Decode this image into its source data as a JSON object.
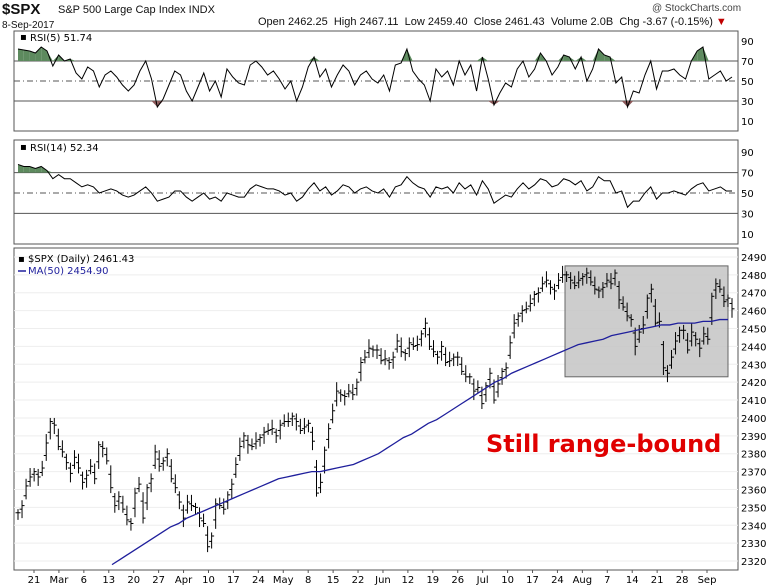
{
  "header": {
    "symbol": "$SPX",
    "name": "S&P 500 Large Cap Index INDX",
    "date": "8-Sep-2017",
    "open": "Open 2462.25",
    "high": "High 2467.11",
    "low": "Low 2459.40",
    "close": "Close 2461.43",
    "volume": "Volume 2.0B",
    "change": "Chg -3.67 (-0.15%)",
    "change_marker": "▼",
    "credit": "@ StockCharts.com"
  },
  "colors": {
    "overbought_fill": "#5d8a5e",
    "oversold_fill": "#8c5a5a",
    "ma_line": "#1f1f9c",
    "range_box": "#c4c4c4",
    "annotation": "#e00000"
  },
  "chart_data": [
    {
      "type": "line",
      "title": "RSI(5) 51.74",
      "ylim": [
        0,
        100
      ],
      "y_ticks": [
        "90",
        "70",
        "50",
        "30",
        "10"
      ],
      "ref_lines": [
        70,
        50,
        30
      ],
      "values": [
        82,
        81,
        80,
        78,
        84,
        80,
        65,
        76,
        70,
        72,
        58,
        52,
        64,
        60,
        44,
        56,
        60,
        54,
        46,
        40,
        46,
        60,
        70,
        52,
        24,
        32,
        46,
        60,
        56,
        40,
        30,
        44,
        58,
        40,
        50,
        34,
        62,
        54,
        48,
        46,
        66,
        70,
        64,
        56,
        60,
        52,
        42,
        50,
        30,
        44,
        64,
        74,
        54,
        62,
        44,
        56,
        66,
        60,
        46,
        56,
        60,
        52,
        48,
        56,
        40,
        66,
        68,
        82,
        60,
        52,
        46,
        30,
        62,
        54,
        60,
        46,
        70,
        56,
        66,
        40,
        74,
        52,
        26,
        38,
        48,
        44,
        62,
        70,
        54,
        62,
        78,
        70,
        56,
        64,
        76,
        74,
        62,
        74,
        50,
        62,
        82,
        76,
        74,
        48,
        54,
        24,
        40,
        38,
        56,
        70,
        42,
        60,
        60,
        62,
        56,
        52,
        70,
        80,
        84,
        52,
        56,
        60,
        50,
        54
      ]
    },
    {
      "type": "line",
      "title": "RSI(14) 52.34",
      "ylim": [
        0,
        100
      ],
      "y_ticks": [
        "90",
        "70",
        "50",
        "30",
        "10"
      ],
      "ref_lines": [
        70,
        50,
        30
      ],
      "values": [
        78,
        76,
        76,
        74,
        76,
        72,
        64,
        68,
        64,
        64,
        60,
        56,
        58,
        56,
        50,
        52,
        54,
        52,
        48,
        46,
        48,
        52,
        56,
        50,
        42,
        44,
        46,
        52,
        52,
        46,
        42,
        46,
        50,
        44,
        46,
        42,
        50,
        48,
        46,
        46,
        54,
        58,
        56,
        54,
        54,
        52,
        48,
        50,
        42,
        46,
        54,
        60,
        52,
        56,
        48,
        52,
        58,
        56,
        50,
        54,
        56,
        52,
        50,
        54,
        46,
        56,
        58,
        66,
        60,
        56,
        54,
        46,
        56,
        54,
        56,
        50,
        60,
        54,
        58,
        48,
        62,
        54,
        40,
        44,
        48,
        46,
        54,
        60,
        54,
        58,
        64,
        62,
        56,
        58,
        64,
        62,
        58,
        62,
        52,
        56,
        66,
        62,
        62,
        50,
        52,
        36,
        42,
        42,
        50,
        56,
        44,
        50,
        50,
        52,
        50,
        48,
        54,
        58,
        60,
        52,
        54,
        56,
        52,
        52
      ]
    },
    {
      "type": "bar",
      "title": "$SPX (Daily) 2461.43",
      "series": [
        {
          "name": "$SPX (Daily) 2461.43",
          "style": "ohlc bars"
        },
        {
          "name": "MA(50) 2454.90",
          "style": "line"
        }
      ],
      "ylim": [
        2315,
        2495
      ],
      "y_ticks": [
        "2490",
        "2480",
        "2470",
        "2460",
        "2450",
        "2440",
        "2430",
        "2420",
        "2410",
        "2400",
        "2390",
        "2380",
        "2370",
        "2360",
        "2350",
        "2340",
        "2330",
        "2320"
      ],
      "x_ticks": [
        "21",
        "Mar",
        "6",
        "13",
        "20",
        "27",
        "Apr",
        "10",
        "17",
        "24",
        "May",
        "8",
        "15",
        "22",
        "Jun",
        "12",
        "19",
        "26",
        "Jul",
        "10",
        "17",
        "24",
        "Aug",
        "7",
        "14",
        "21",
        "28",
        "Sep"
      ],
      "close": [
        2347,
        2351,
        2362,
        2367,
        2370,
        2367,
        2372,
        2386,
        2398,
        2396,
        2384,
        2381,
        2375,
        2369,
        2378,
        2372,
        2364,
        2368,
        2373,
        2366,
        2385,
        2383,
        2376,
        2361,
        2351,
        2356,
        2349,
        2343,
        2341,
        2358,
        2363,
        2344,
        2361,
        2366,
        2381,
        2373,
        2376,
        2380,
        2366,
        2361,
        2353,
        2344,
        2353,
        2351,
        2350,
        2344,
        2341,
        2328,
        2334,
        2352,
        2351,
        2349,
        2357,
        2363,
        2374,
        2384,
        2390,
        2385,
        2384,
        2387,
        2389,
        2392,
        2393,
        2394,
        2390,
        2396,
        2398,
        2398,
        2401,
        2398,
        2393,
        2395,
        2397,
        2387,
        2358,
        2364,
        2382,
        2394,
        2404,
        2415,
        2413,
        2412,
        2415,
        2413,
        2420,
        2431,
        2434,
        2439,
        2438,
        2438,
        2432,
        2433,
        2431,
        2434,
        2443,
        2437,
        2436,
        2442,
        2440,
        2441,
        2447,
        2453,
        2440,
        2437,
        2434,
        2440,
        2431,
        2432,
        2434,
        2434,
        2426,
        2423,
        2423,
        2415,
        2417,
        2408,
        2418,
        2425,
        2410,
        2419,
        2426,
        2428,
        2442,
        2453,
        2457,
        2460,
        2461,
        2464,
        2469,
        2470,
        2475,
        2477,
        2473,
        2471,
        2477,
        2480,
        2480,
        2477,
        2474,
        2477,
        2479,
        2481,
        2476,
        2472,
        2471,
        2473,
        2477,
        2475,
        2481,
        2466,
        2462,
        2457,
        2455,
        2440,
        2448,
        2452,
        2467,
        2472,
        2453,
        2454,
        2428,
        2425,
        2434,
        2443,
        2449,
        2449,
        2438,
        2448,
        2444,
        2439,
        2447,
        2444,
        2468,
        2475,
        2472,
        2465,
        2467,
        2461
      ],
      "ma50": [
        2318,
        2321,
        2324,
        2327,
        2330,
        2333,
        2336,
        2339,
        2341,
        2344,
        2346,
        2348,
        2350,
        2352,
        2354,
        2356,
        2358,
        2360,
        2362,
        2364,
        2366,
        2367,
        2368,
        2369,
        2370,
        2370,
        2371,
        2372,
        2373,
        2374,
        2376,
        2378,
        2380,
        2383,
        2386,
        2389,
        2391,
        2394,
        2397,
        2399,
        2402,
        2405,
        2408,
        2411,
        2414,
        2417,
        2420,
        2422,
        2425,
        2427,
        2429,
        2431,
        2433,
        2435,
        2437,
        2439,
        2441,
        2442,
        2443,
        2444,
        2446,
        2447,
        2448,
        2449,
        2450,
        2451,
        2452,
        2452,
        2453,
        2453,
        2453,
        2454,
        2454,
        2455,
        2455
      ],
      "annotations": [
        {
          "text": "Still range-bound",
          "color": "#e00000"
        },
        {
          "shape": "shaded rectangle",
          "from": "Jul 24",
          "to": "Sep 8",
          "ylim": [
            2423,
            2485
          ]
        }
      ]
    }
  ]
}
